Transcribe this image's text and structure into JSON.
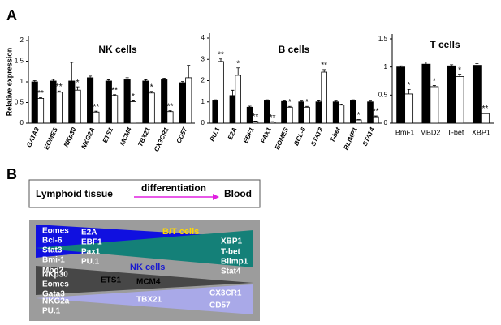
{
  "panel_labels": [
    "A",
    "B"
  ],
  "chart_data": [
    {
      "type": "bar",
      "title": "NK cells",
      "y_label": "Relative expression",
      "categories": [
        "GATA3",
        "EOMES",
        "NKp30",
        "NKG2A",
        "ETS1",
        "MCM4",
        "TBX21",
        "CX3CR1",
        "CD57"
      ],
      "series": [
        {
          "color": "#000000",
          "values": [
            1.0,
            1.02,
            1.02,
            1.1,
            1.02,
            1.05,
            1.02,
            1.05,
            0.98
          ],
          "errors": [
            0.03,
            0.04,
            0.45,
            0.04,
            0.03,
            0.05,
            0.03,
            0.04,
            0.03
          ]
        },
        {
          "color": "#ffffff",
          "values": [
            0.6,
            0.75,
            0.8,
            0.27,
            0.67,
            0.52,
            0.73,
            0.28,
            1.1
          ],
          "errors": [
            0.02,
            0.03,
            0.08,
            0.02,
            0.02,
            0.02,
            0.04,
            0.02,
            0.3
          ],
          "annotations": [
            "**",
            "**",
            "*",
            "**",
            "**",
            "*",
            "*",
            "**",
            null
          ]
        }
      ],
      "ylim": [
        0,
        2
      ],
      "yticks": [
        0,
        0.5,
        1,
        1.5,
        2
      ]
    },
    {
      "type": "bar",
      "title": "B cells",
      "categories": [
        "PU.1",
        "E2A",
        "EBF1",
        "PAX1",
        "EOMES",
        "BCL-6",
        "STAT3",
        "T-bet",
        "BLIMP1",
        "STAT4"
      ],
      "series": [
        {
          "color": "#000000",
          "values": [
            1.05,
            1.3,
            0.75,
            1.05,
            1.02,
            1.0,
            1.0,
            1.0,
            1.05,
            1.0
          ],
          "errors": [
            0.05,
            0.25,
            0.05,
            0.05,
            0.04,
            0.04,
            0.05,
            0.04,
            0.05,
            0.04
          ]
        },
        {
          "color": "#ffffff",
          "values": [
            2.9,
            2.25,
            0.08,
            0.05,
            0.75,
            0.75,
            2.4,
            0.85,
            0.15,
            0.3
          ],
          "errors": [
            0.12,
            0.35,
            0.02,
            0.02,
            0.04,
            0.04,
            0.12,
            0.05,
            0.02,
            0.04
          ],
          "annotations": [
            "**",
            "*",
            "**",
            "**",
            "*",
            "*",
            "**",
            null,
            "*",
            "**"
          ]
        }
      ],
      "ylim": [
        0,
        4
      ],
      "yticks": [
        0,
        1,
        2,
        3,
        4
      ]
    },
    {
      "type": "bar",
      "title": "T cells",
      "categories": [
        "Bmi-1",
        "MBD2",
        "T-bet",
        "XBP1"
      ],
      "series": [
        {
          "color": "#000000",
          "values": [
            1.0,
            1.05,
            1.02,
            1.03
          ],
          "errors": [
            0.02,
            0.04,
            0.02,
            0.03
          ]
        },
        {
          "color": "#ffffff",
          "values": [
            0.52,
            0.65,
            0.83,
            0.17
          ],
          "errors": [
            0.08,
            0.02,
            0.04,
            0.01
          ],
          "annotations": [
            "*",
            "*",
            "*",
            "**"
          ]
        }
      ],
      "ylim": [
        0,
        1.5
      ],
      "yticks": [
        0,
        0.5,
        1,
        1.5
      ]
    }
  ],
  "diagram": {
    "top_box": {
      "left": "Lymphoid tissue",
      "middle": "differentiation",
      "right": "Blood"
    },
    "bt": {
      "title": "B/T cells",
      "left_upper": [
        "Eomes",
        "Bcl-6",
        "Stat3"
      ],
      "left_lower": [
        "Bmi-1",
        "Mbd2"
      ],
      "middle": [
        "E2A",
        "EBF1",
        "Pax1",
        "PU.1"
      ],
      "right_upper": [
        "XBP1"
      ],
      "right_lower": [
        "T-bet",
        "Blimp1",
        "Stat4"
      ]
    },
    "nk": {
      "title": "NK cells",
      "left_upper": [
        "NKp30",
        "Eomes",
        "Gata3"
      ],
      "middle_upper": [
        "ETS1",
        "MCM4"
      ],
      "right_lower": [
        "CX3CR1",
        "CD57"
      ],
      "left_lower": [
        "NKG2a",
        "PU.1"
      ],
      "middle_lower": [
        "TBX21"
      ]
    }
  }
}
